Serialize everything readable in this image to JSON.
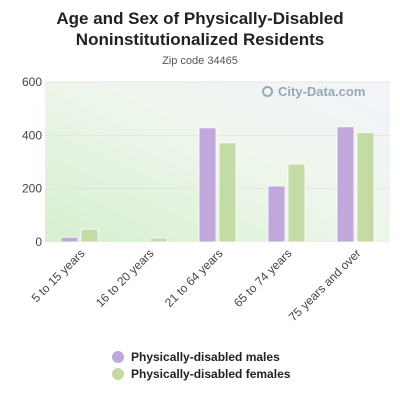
{
  "header": {
    "title_line1": "Age and Sex of Physically-Disabled",
    "title_line2": "Noninstitutionalized Residents",
    "subtitle": "Zip code 34465"
  },
  "watermark": "City-Data.com",
  "chart_data": {
    "type": "bar",
    "title": "Age and Sex of Physically-Disabled Noninstitutionalized Residents",
    "subtitle": "Zip code 34465",
    "categories": [
      "5 to 15 years",
      "16 to 20 years",
      "21 to 64 years",
      "65 to 74 years",
      "75 years and over"
    ],
    "series": [
      {
        "name": "Physically-disabled males",
        "values": [
          18,
          0,
          428,
          210,
          432
        ],
        "color": "#c0a8dc"
      },
      {
        "name": "Physically-disabled females",
        "values": [
          48,
          15,
          372,
          292,
          410
        ],
        "color": "#c5dba6"
      }
    ],
    "yticks": [
      0,
      200,
      400,
      600
    ],
    "ylim": [
      0,
      600
    ],
    "grid": true,
    "legend_position": "bottom"
  }
}
